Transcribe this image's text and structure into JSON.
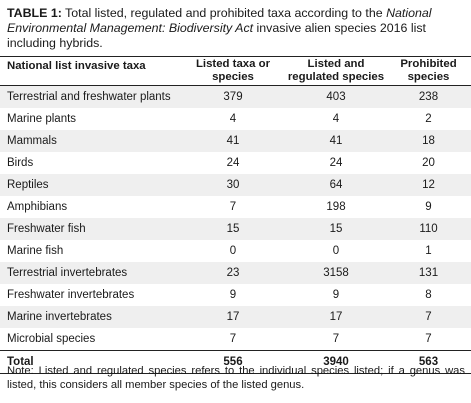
{
  "caption": {
    "label": "TABLE 1:",
    "text_before": " Total listed, regulated and prohibited taxa according to the ",
    "italic": "National Environmental Management: Biodiversity Act",
    "text_after": " invasive alien species 2016 list including hybrids."
  },
  "table": {
    "headers": [
      "National list invasive taxa",
      "Listed taxa or species",
      "Listed and regulated species",
      "Prohibited species"
    ],
    "rows": [
      {
        "name": "Terrestrial and freshwater plants",
        "listed": "379",
        "regulated": "403",
        "prohibited": "238"
      },
      {
        "name": "Marine plants",
        "listed": "4",
        "regulated": "4",
        "prohibited": "2"
      },
      {
        "name": "Mammals",
        "listed": "41",
        "regulated": "41",
        "prohibited": "18"
      },
      {
        "name": "Birds",
        "listed": "24",
        "regulated": "24",
        "prohibited": "20"
      },
      {
        "name": "Reptiles",
        "listed": "30",
        "regulated": "64",
        "prohibited": "12"
      },
      {
        "name": "Amphibians",
        "listed": "7",
        "regulated": "198",
        "prohibited": "9"
      },
      {
        "name": "Freshwater fish",
        "listed": "15",
        "regulated": "15",
        "prohibited": "110"
      },
      {
        "name": "Marine fish",
        "listed": "0",
        "regulated": "0",
        "prohibited": "1"
      },
      {
        "name": "Terrestrial invertebrates",
        "listed": "23",
        "regulated": "3158",
        "prohibited": "131"
      },
      {
        "name": "Freshwater invertebrates",
        "listed": "9",
        "regulated": "9",
        "prohibited": "8"
      },
      {
        "name": "Marine invertebrates",
        "listed": "17",
        "regulated": "17",
        "prohibited": "7"
      },
      {
        "name": "Microbial species",
        "listed": "7",
        "regulated": "7",
        "prohibited": "7"
      }
    ],
    "total": {
      "name": "Total",
      "listed": "556",
      "regulated": "3940",
      "prohibited": "563"
    }
  },
  "note": "Note: Listed and regulated species refers to the individual species listed; if a genus was listed, this considers all member species of the listed genus."
}
